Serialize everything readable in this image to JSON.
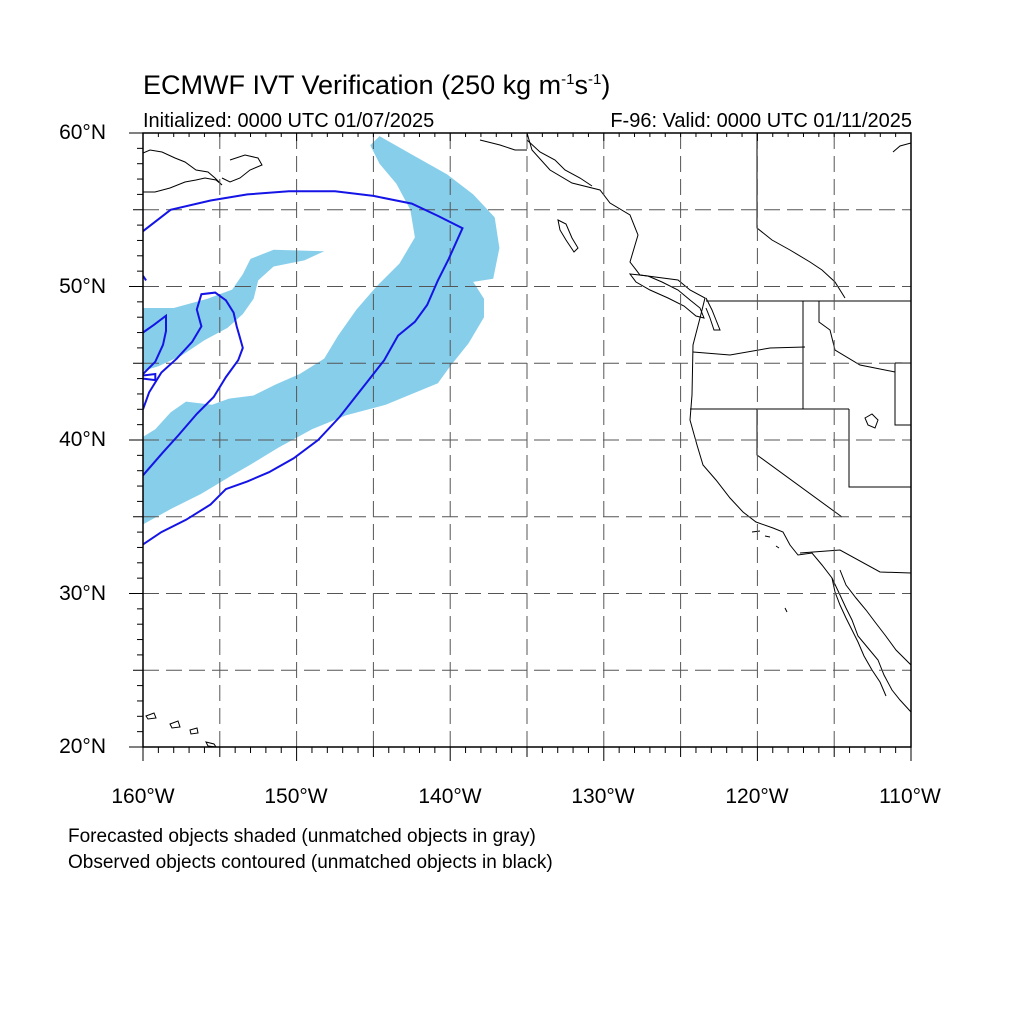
{
  "title": {
    "main": "ECMWF IVT Verification (250 kg m",
    "exp1": "-1",
    "mid": "s",
    "exp2": "-1",
    "end": ")"
  },
  "initialized": "Initialized: 0000 UTC 01/07/2025",
  "valid": "F-96: Valid: 0000 UTC 01/11/2025",
  "lat_labels": [
    "60°N",
    "50°N",
    "40°N",
    "30°N",
    "20°N"
  ],
  "lon_labels": [
    "160°W",
    "150°W",
    "140°W",
    "130°W",
    "120°W",
    "110°W"
  ],
  "notes": [
    "Forecasted objects shaded (unmatched objects in gray)",
    "Observed objects contoured (unmatched objects in black)"
  ],
  "map": {
    "lon_range": [
      -160,
      -110
    ],
    "lat_range": [
      20,
      60
    ],
    "grid_lons": [
      -155,
      -150,
      -145,
      -140,
      -135,
      -130,
      -125,
      -120,
      -115
    ],
    "grid_lats": [
      25,
      30,
      35,
      40,
      45,
      50,
      55
    ],
    "forecast_color": "#87ceeb",
    "observed_color": "#1414e6",
    "coast_color": "#000000",
    "forecast_objects": [
      [
        [
          -160,
          44.5
        ],
        [
          -159,
          44.8
        ],
        [
          -157.5,
          45.5
        ],
        [
          -156,
          46.5
        ],
        [
          -154.5,
          47.3
        ],
        [
          -153.5,
          48.2
        ],
        [
          -152.8,
          49.2
        ],
        [
          -152.5,
          50.4
        ],
        [
          -151.5,
          51.3
        ],
        [
          -149.5,
          51.7
        ],
        [
          -148.2,
          52.3
        ],
        [
          -151.5,
          52.4
        ],
        [
          -153,
          51.8
        ],
        [
          -153.5,
          50.8
        ],
        [
          -154.2,
          49.8
        ],
        [
          -155.8,
          49.2
        ],
        [
          -158,
          48.6
        ],
        [
          -160,
          48.6
        ]
      ],
      [
        [
          -160,
          34.5
        ],
        [
          -158.2,
          35.5
        ],
        [
          -156.2,
          36.5
        ],
        [
          -154.2,
          37.7
        ],
        [
          -153,
          38.4
        ],
        [
          -151.2,
          39.5
        ],
        [
          -149,
          40.7
        ],
        [
          -146.8,
          41.6
        ],
        [
          -144.2,
          42.3
        ],
        [
          -142.5,
          43
        ],
        [
          -140.8,
          43.7
        ],
        [
          -140,
          44.8
        ],
        [
          -138.8,
          46.3
        ],
        [
          -137.8,
          48
        ],
        [
          -137.8,
          49.2
        ],
        [
          -138.5,
          50.3
        ],
        [
          -137.2,
          50.5
        ],
        [
          -136.8,
          52.5
        ],
        [
          -137.1,
          54.5
        ],
        [
          -138.5,
          56
        ],
        [
          -140.2,
          57.3
        ],
        [
          -142.5,
          58.6
        ],
        [
          -144.6,
          59.8
        ],
        [
          -145.2,
          59.2
        ],
        [
          -144.6,
          58
        ],
        [
          -143.5,
          56.7
        ],
        [
          -142.6,
          55
        ],
        [
          -142.3,
          53.2
        ],
        [
          -143.3,
          51.5
        ],
        [
          -144.8,
          50
        ],
        [
          -146.1,
          48.5
        ],
        [
          -147.3,
          46.8
        ],
        [
          -148.2,
          45.3
        ],
        [
          -149.8,
          44.3
        ],
        [
          -151.4,
          43.6
        ],
        [
          -152.8,
          42.9
        ],
        [
          -154.4,
          42.7
        ],
        [
          -155.5,
          42.3
        ],
        [
          -157.2,
          42.5
        ],
        [
          -158.2,
          41.8
        ],
        [
          -159.2,
          40.7
        ],
        [
          -160,
          40.2
        ]
      ]
    ],
    "observed_contours": [
      [
        [
          -160,
          33.2
        ],
        [
          -158.8,
          34
        ],
        [
          -157.2,
          34.8
        ],
        [
          -155.6,
          35.8
        ],
        [
          -154.6,
          36.8
        ],
        [
          -153.2,
          37.3
        ],
        [
          -151.8,
          37.9
        ],
        [
          -150.2,
          38.8
        ],
        [
          -148.6,
          40
        ],
        [
          -147.2,
          41.5
        ],
        [
          -145.7,
          43.4
        ],
        [
          -144.3,
          45.2
        ],
        [
          -143.4,
          46.8
        ],
        [
          -142.3,
          47.7
        ],
        [
          -141.5,
          48.8
        ],
        [
          -140.8,
          50.4
        ],
        [
          -140.1,
          51.8
        ],
        [
          -139.2,
          53.8
        ],
        [
          -140.8,
          54.6
        ],
        [
          -142.5,
          55.4
        ],
        [
          -145,
          55.9
        ],
        [
          -147.5,
          56.2
        ],
        [
          -150.5,
          56.2
        ],
        [
          -153.2,
          56
        ],
        [
          -155.6,
          55.6
        ],
        [
          -158.2,
          55
        ],
        [
          -160,
          53.6
        ]
      ],
      [
        [
          -160,
          37.7
        ],
        [
          -158.7,
          39.2
        ],
        [
          -157.7,
          40.3
        ],
        [
          -156.5,
          41.7
        ],
        [
          -155.4,
          42.8
        ],
        [
          -154.6,
          44.1
        ],
        [
          -153.8,
          45.2
        ],
        [
          -153.5,
          46
        ],
        [
          -153.7,
          46.7
        ],
        [
          -153.9,
          47.4
        ],
        [
          -154.1,
          48.3
        ],
        [
          -154.6,
          49.1
        ],
        [
          -155.3,
          49.6
        ],
        [
          -156.2,
          49.5
        ],
        [
          -156.5,
          48.5
        ],
        [
          -156.2,
          47.4
        ],
        [
          -156.8,
          46.4
        ],
        [
          -157.8,
          45.3
        ],
        [
          -158.8,
          44.4
        ],
        [
          -159.6,
          43.1
        ],
        [
          -160,
          42
        ]
      ],
      [
        [
          -160,
          44.3
        ],
        [
          -159.2,
          45.1
        ],
        [
          -158.7,
          46.2
        ],
        [
          -158.5,
          47.1
        ],
        [
          -158.5,
          48.1
        ],
        [
          -159.3,
          47.5
        ],
        [
          -160,
          47
        ]
      ]
    ]
  }
}
